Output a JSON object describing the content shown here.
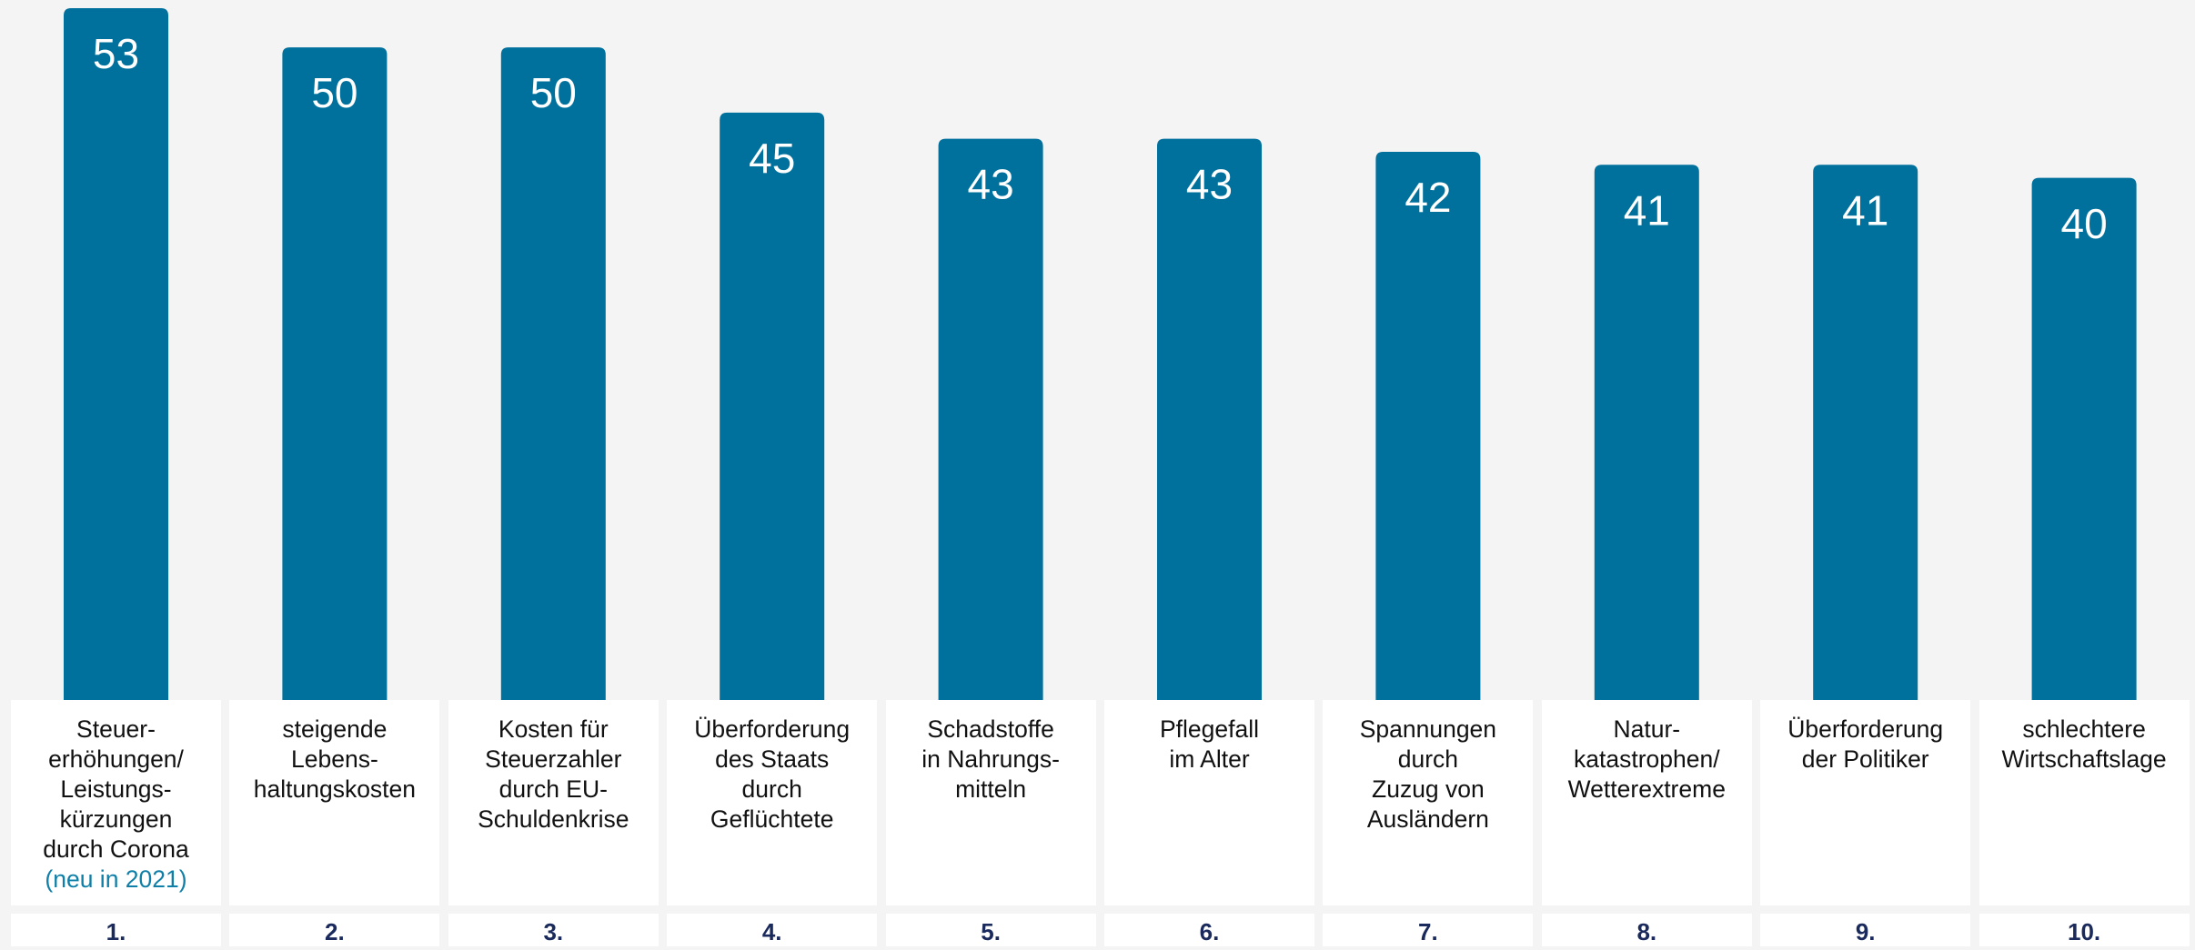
{
  "chart_data": {
    "type": "bar",
    "categories": [
      "Steuer-\nerhöhungen/\nLeistungs-\nkürzungen\ndurch Corona",
      "steigende\nLebens-\nhaltungskosten",
      "Kosten für\nSteuerzahler\ndurch EU-\nSchuldenkrise",
      "Überforderung\ndes Staats\ndurch\nGeflüchtete",
      "Schadstoffe\nin Nahrungs-\nmitteln",
      "Pflegefall\nim Alter",
      "Spannungen\ndurch\nZuzug von\nAusländern",
      "Natur-\nkatastrophen/\nWetterextreme",
      "Überforderung\nder Politiker",
      "schlechtere\nWirtschaftslage"
    ],
    "values": [
      53,
      50,
      50,
      45,
      43,
      43,
      42,
      41,
      41,
      40
    ],
    "annotation": "(neu in 2021)",
    "ranks": [
      "1.",
      "2.",
      "3.",
      "4.",
      "5.",
      "6.",
      "7.",
      "8.",
      "9.",
      "10."
    ],
    "color": "#00709c",
    "ylim": [
      0,
      53
    ]
  }
}
